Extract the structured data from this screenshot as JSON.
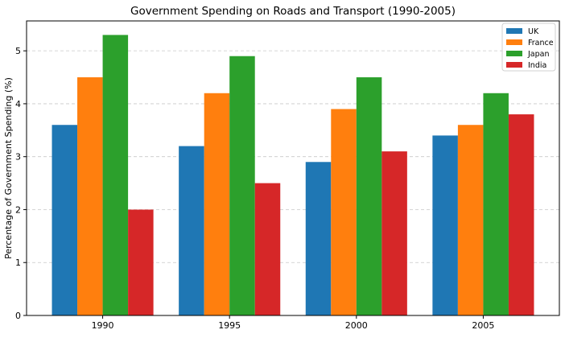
{
  "chart_data": {
    "type": "bar",
    "title": "Government Spending on Roads and Transport (1990-2005)",
    "xlabel": "",
    "ylabel": "Percentage of Government Spending (%)",
    "categories": [
      "1990",
      "1995",
      "2000",
      "2005"
    ],
    "series": [
      {
        "name": "UK",
        "color": "#1f77b4",
        "values": [
          3.6,
          3.2,
          2.9,
          3.4
        ]
      },
      {
        "name": "France",
        "color": "#ff7f0e",
        "values": [
          4.5,
          4.2,
          3.9,
          3.6
        ]
      },
      {
        "name": "Japan",
        "color": "#2ca02c",
        "values": [
          5.3,
          4.9,
          4.5,
          4.2
        ]
      },
      {
        "name": "India",
        "color": "#d62728",
        "values": [
          2.0,
          2.5,
          3.1,
          3.8
        ]
      }
    ],
    "ylim": [
      0,
      5.565
    ],
    "yticks": [
      "0",
      "1",
      "2",
      "3",
      "4",
      "5"
    ],
    "grid": "horizontal dashed",
    "legend": "top-right"
  }
}
